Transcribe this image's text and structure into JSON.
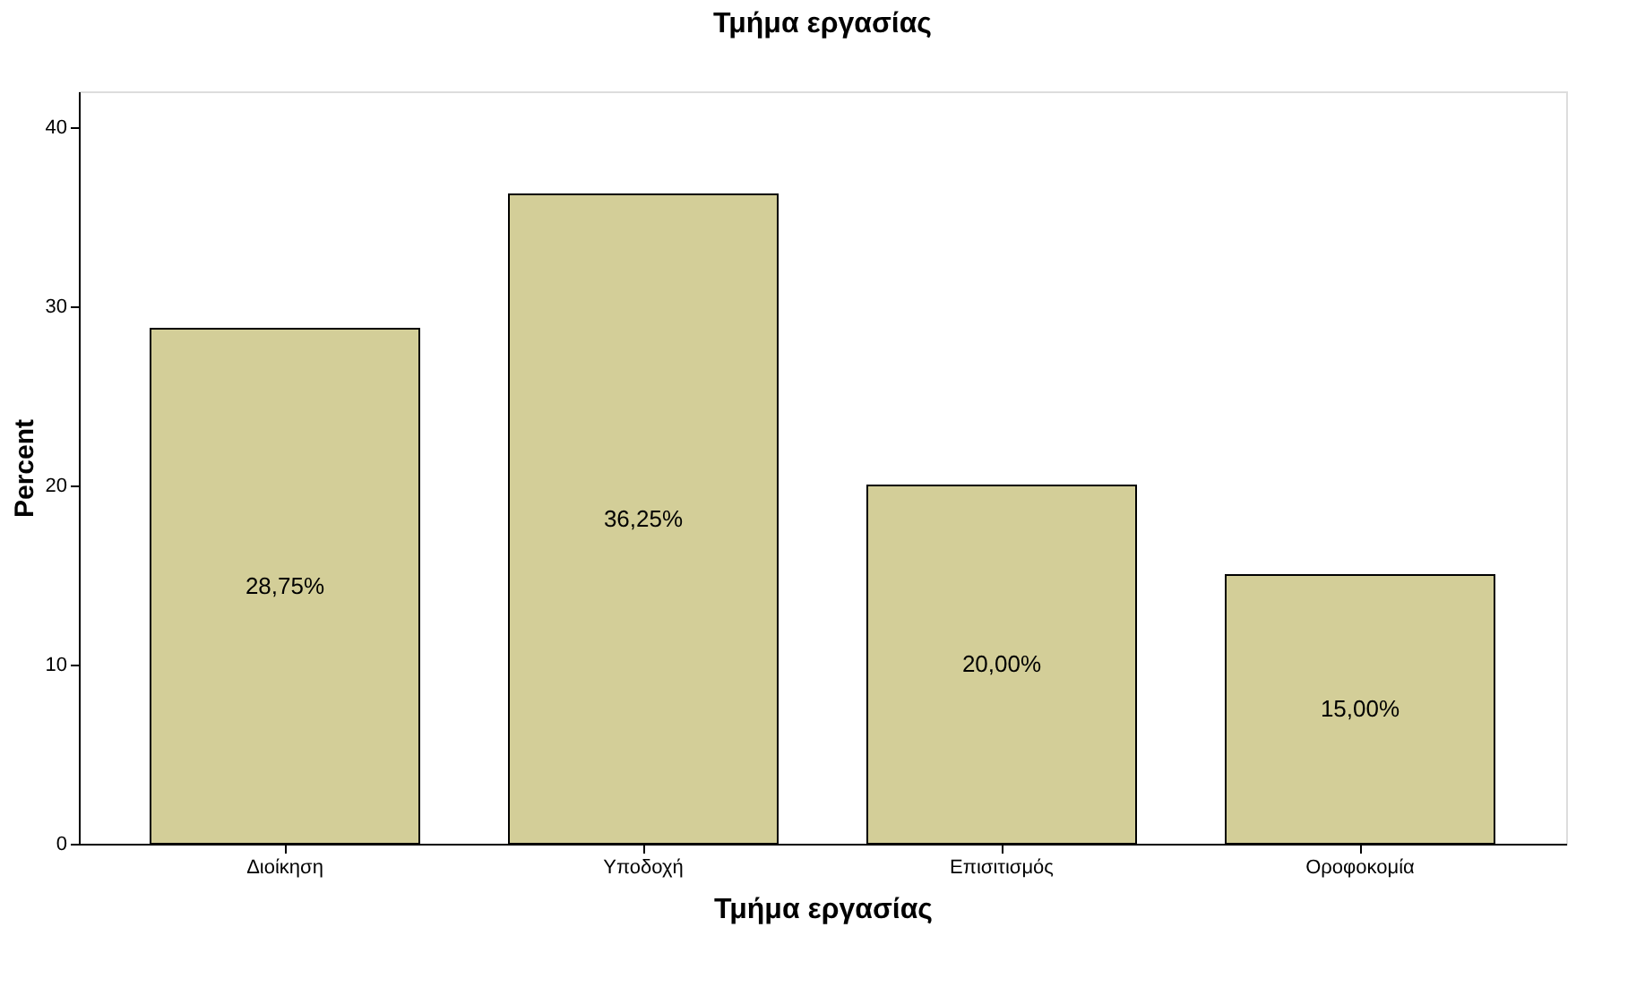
{
  "chart_data": {
    "type": "bar",
    "title": "Τμήμα εργασίας",
    "xlabel": "Τμήμα εργασίας",
    "ylabel": "Percent",
    "categories": [
      "Διοίκηση",
      "Υποδοχή",
      "Επισιτισμός",
      "Οροφοκομία"
    ],
    "values": [
      28.75,
      36.25,
      20.0,
      15.0
    ],
    "value_labels": [
      "28,75%",
      "36,25%",
      "20,00%",
      "15,00%"
    ],
    "color": "#d3ce98",
    "ylim": [
      0,
      42
    ],
    "yticks": [
      0,
      10,
      20,
      30,
      40
    ],
    "grid": false
  }
}
